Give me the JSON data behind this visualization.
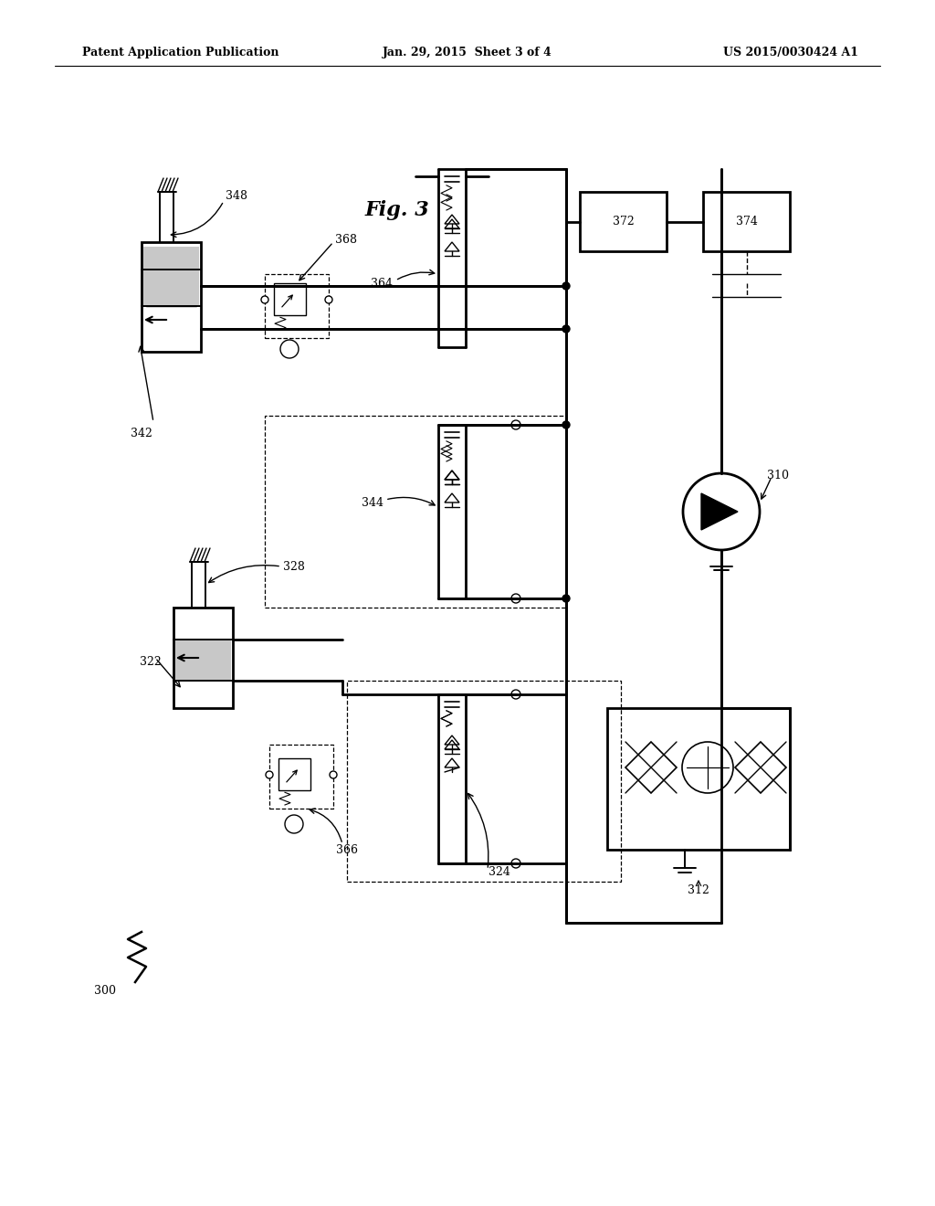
{
  "title_left": "Patent Application Publication",
  "title_center": "Jan. 29, 2015  Sheet 3 of 4",
  "title_right": "US 2015/0030424 A1",
  "fig_label": "Fig. 3",
  "background_color": "#ffffff"
}
